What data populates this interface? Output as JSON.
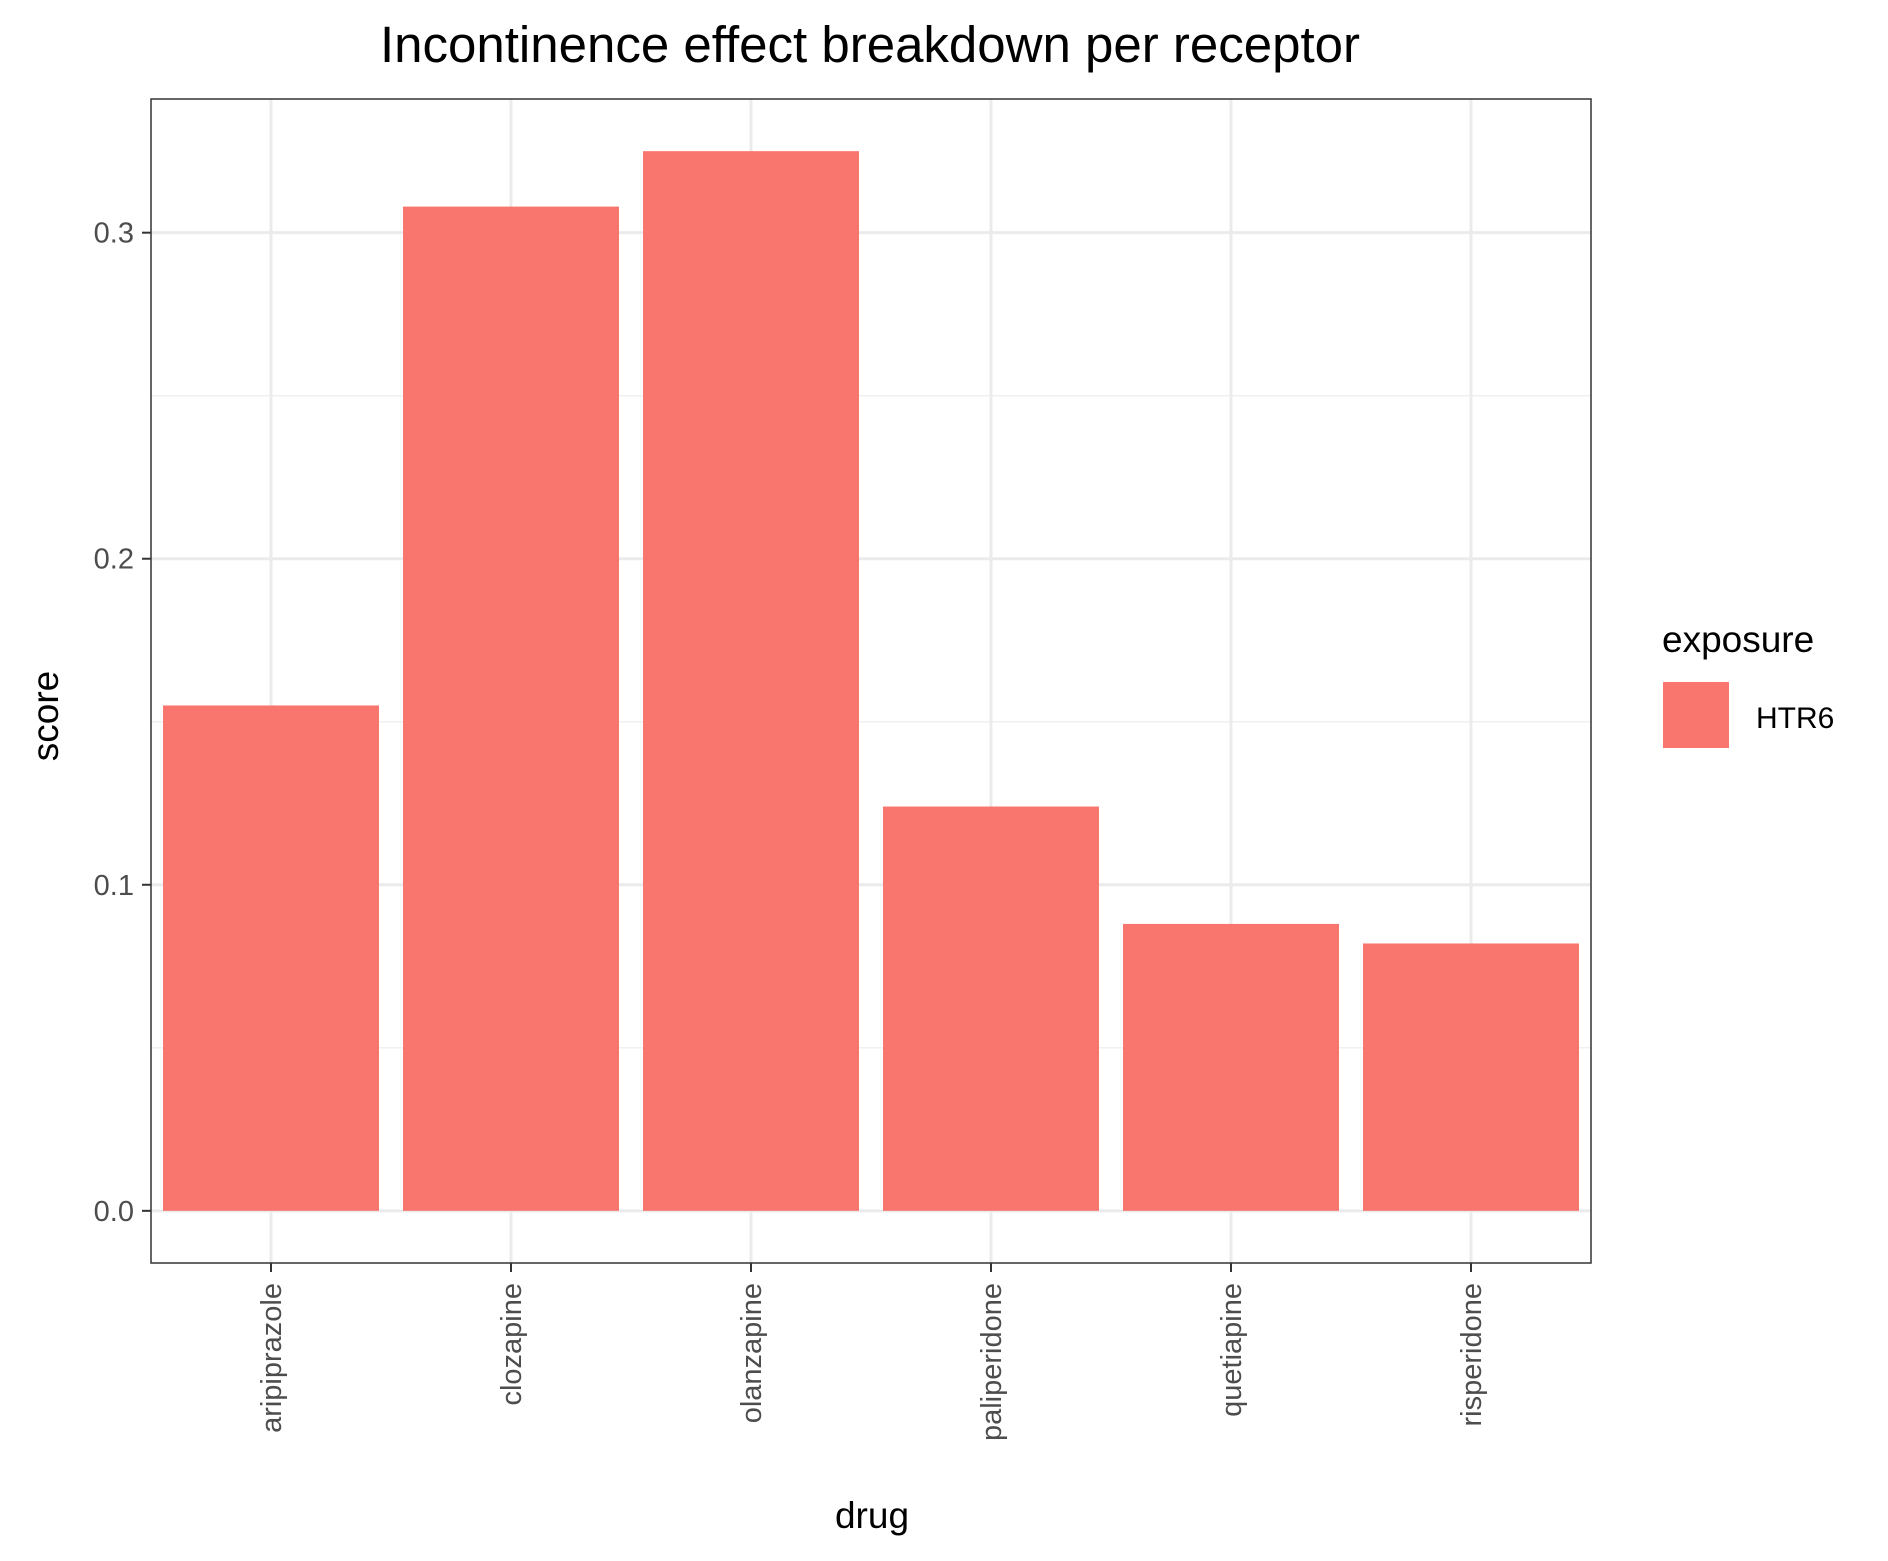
{
  "chart_data": {
    "type": "bar",
    "title": "Incontinence effect breakdown per receptor",
    "xlabel": "drug",
    "ylabel": "score",
    "categories": [
      "aripiprazole",
      "clozapine",
      "olanzapine",
      "paliperidone",
      "quetiapine",
      "risperidone"
    ],
    "series": [
      {
        "name": "HTR6",
        "color": "#F8766D",
        "values": [
          0.155,
          0.308,
          0.325,
          0.124,
          0.088,
          0.082
        ]
      }
    ],
    "ylim": [
      -0.016,
      0.341
    ],
    "yticks": [
      0.0,
      0.1,
      0.2,
      0.3
    ],
    "ytick_labels": [
      "0.0",
      "0.1",
      "0.2",
      "0.3"
    ],
    "grid": true,
    "legend": {
      "title": "exposure",
      "position": "right"
    }
  }
}
